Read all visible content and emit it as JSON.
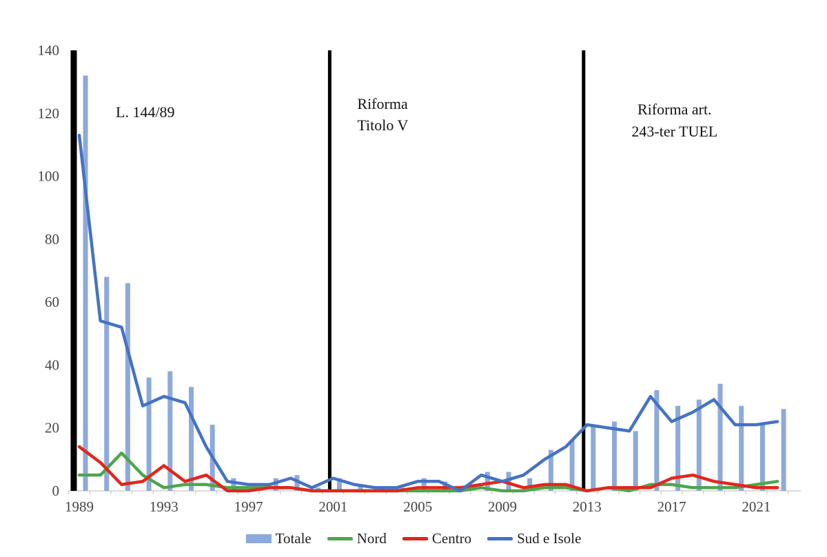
{
  "legend": {
    "totale_label": "Totale",
    "nord_label": "Nord",
    "centro_label": "Centro",
    "sud_label": "Sud e Isole"
  },
  "colors": {
    "totale_bar": "#8EA9DB",
    "nord_line": "#4CA64C",
    "centro_line": "#E2261C",
    "sud_line": "#4472C4",
    "event_line": "#000000",
    "axis": "#C6C6C6",
    "axis_text": "#454545",
    "annotation_text": "#141414"
  },
  "chart_data": {
    "type": "bar",
    "subtype": "bar-line-combo",
    "x": [
      1989,
      1990,
      1991,
      1992,
      1993,
      1994,
      1995,
      1996,
      1997,
      1998,
      1999,
      2000,
      2001,
      2002,
      2003,
      2004,
      2005,
      2006,
      2007,
      2008,
      2009,
      2010,
      2011,
      2012,
      2013,
      2014,
      2015,
      2016,
      2017,
      2018,
      2019,
      2020,
      2021,
      2022
    ],
    "x_tick_labels": [
      "1989",
      "1993",
      "1997",
      "2001",
      "2005",
      "2009",
      "2013",
      "2017",
      "2021"
    ],
    "ylim": [
      0,
      140
    ],
    "yticks": [
      0,
      20,
      40,
      60,
      80,
      100,
      120,
      140
    ],
    "grid": false,
    "legend_position": "bottom",
    "series": [
      {
        "name": "Totale",
        "style": "bar",
        "color": "#8EA9DB",
        "values": [
          132,
          68,
          66,
          36,
          38,
          33,
          21,
          4,
          2,
          4,
          5,
          1,
          4,
          2,
          1,
          1,
          4,
          3,
          1,
          6,
          6,
          4,
          13,
          16,
          21,
          22,
          19,
          32,
          27,
          29,
          34,
          27,
          21,
          26
        ]
      },
      {
        "name": "Nord",
        "style": "line",
        "color": "#4CA64C",
        "values": [
          5,
          5,
          12,
          5,
          1,
          2,
          2,
          1,
          1,
          1,
          1,
          0,
          0,
          0,
          0,
          0,
          0,
          0,
          0,
          1,
          0,
          0,
          1,
          1,
          0,
          1,
          0,
          2,
          2,
          1,
          1,
          1,
          2,
          3
        ]
      },
      {
        "name": "Centro",
        "style": "line",
        "color": "#E2261C",
        "values": [
          14,
          9,
          2,
          3,
          8,
          3,
          5,
          0,
          0,
          1,
          1,
          0,
          0,
          0,
          0,
          0,
          1,
          1,
          1,
          2,
          3,
          1,
          2,
          2,
          0,
          1,
          1,
          1,
          4,
          5,
          3,
          2,
          1,
          1
        ]
      },
      {
        "name": "Sud e Isole",
        "style": "line",
        "color": "#4472C4",
        "values": [
          113,
          54,
          52,
          27,
          30,
          28,
          14,
          3,
          2,
          2,
          4,
          1,
          4,
          2,
          1,
          1,
          3,
          3,
          0,
          5,
          3,
          5,
          10,
          14,
          21,
          20,
          19,
          30,
          22,
          25,
          29,
          21,
          21,
          22
        ]
      }
    ],
    "annotations": [
      {
        "year": 1989,
        "lines": [
          "L. 144/89"
        ]
      },
      {
        "year": 2001,
        "lines": [
          "Riforma",
          "Titolo V"
        ]
      },
      {
        "year": 2013,
        "lines": [
          "Riforma art.",
          "243-ter TUEL"
        ]
      }
    ]
  }
}
